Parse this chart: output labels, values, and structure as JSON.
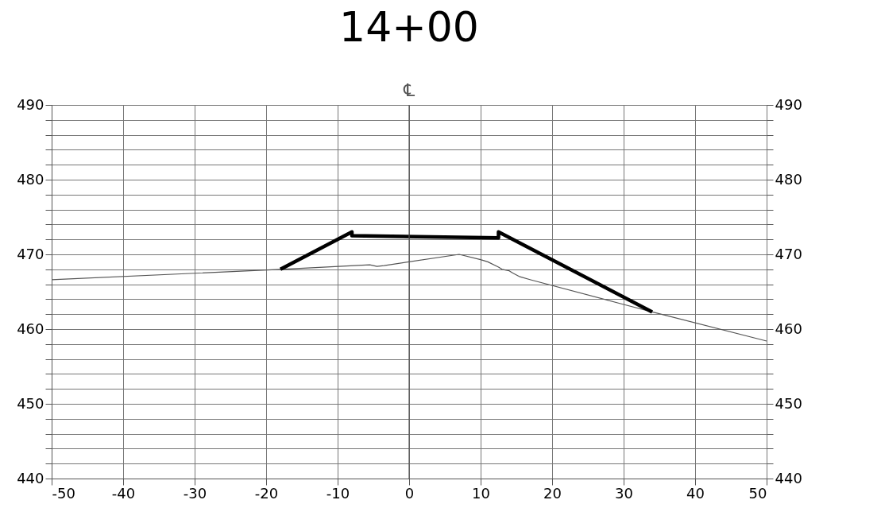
{
  "chart_data": {
    "type": "line",
    "title": "14+00",
    "series": [
      {
        "color": "#555555",
        "x": [
          -50,
          -18,
          -5.5,
          -4.5,
          -3.5,
          7,
          10,
          11,
          12.5,
          13,
          14,
          14.5,
          15.5,
          17,
          30,
          34,
          50
        ],
        "values": [
          466.6,
          468,
          468.6,
          468.4,
          468.5,
          470,
          469.3,
          469,
          468.3,
          468,
          467.8,
          467.5,
          467,
          466.6,
          463.3,
          462.3,
          458.4
        ]
      },
      {
        "color": "#000000",
        "x": [
          -18,
          -8,
          -8,
          12.5,
          12.5,
          34
        ],
        "values": [
          468,
          473,
          472.5,
          472.2,
          473,
          462.3
        ]
      }
    ],
    "xlim": [
      -50,
      50
    ],
    "xticks": [
      -50,
      -40,
      -30,
      -20,
      -10,
      0,
      10,
      20,
      30,
      40,
      50
    ],
    "ylim": [
      440,
      490
    ],
    "yticks": [
      440,
      {
        "value": 442,
        "label": null
      },
      {
        "value": 444,
        "label": null
      },
      {
        "value": 446,
        "label": null
      },
      {
        "value": 448,
        "label": null
      },
      450,
      {
        "value": 452,
        "label": null
      },
      {
        "value": 454,
        "label": null
      },
      {
        "value": 456,
        "label": null
      },
      {
        "value": 458,
        "label": null
      },
      460,
      {
        "value": 462,
        "label": null
      },
      {
        "value": 464,
        "label": null
      },
      {
        "value": 466,
        "label": null
      },
      {
        "value": 468,
        "label": null
      },
      470,
      {
        "value": 472,
        "label": null
      },
      {
        "value": 474,
        "label": null
      },
      {
        "value": 476,
        "label": null
      },
      {
        "value": 478,
        "label": null
      },
      480,
      {
        "value": 482,
        "label": null
      },
      {
        "value": 484,
        "label": null
      },
      {
        "value": 486,
        "label": null
      },
      {
        "value": 488,
        "label": null
      },
      490
    ],
    "y2lim": [
      440,
      490
    ],
    "y2ticks": [
      440,
      {
        "value": 442,
        "label": null
      },
      {
        "value": 444,
        "label": null
      },
      {
        "value": 446,
        "label": null
      },
      {
        "value": 448,
        "label": null
      },
      450,
      {
        "value": 452,
        "label": null
      },
      {
        "value": 454,
        "label": null
      },
      {
        "value": 456,
        "label": null
      },
      {
        "value": 458,
        "label": null
      },
      460,
      {
        "value": 462,
        "label": null
      },
      {
        "value": 464,
        "label": null
      },
      {
        "value": 466,
        "label": null
      },
      {
        "value": 468,
        "label": null
      },
      470,
      {
        "value": 472,
        "label": null
      },
      {
        "value": 474,
        "label": null
      },
      {
        "value": 476,
        "label": null
      },
      {
        "value": 478,
        "label": null
      },
      480,
      {
        "value": 482,
        "label": null
      },
      {
        "value": 484,
        "label": null
      },
      {
        "value": 486,
        "label": null
      },
      {
        "value": 488,
        "label": null
      },
      490
    ],
    "ref_lines": [
      {
        "axis": "x",
        "value": 0,
        "label": "℄",
        "color": "#555555"
      }
    ],
    "grid": true
  }
}
